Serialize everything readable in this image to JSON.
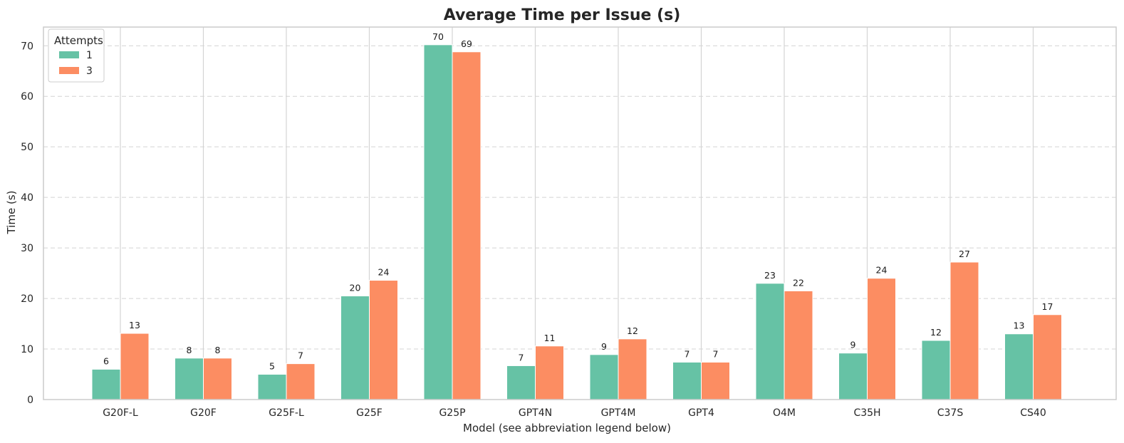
{
  "chart_data": {
    "type": "bar",
    "title": "Average Time per Issue (s)",
    "xlabel": "Model (see abbreviation legend below)",
    "ylabel": "Time (s)",
    "ylim": [
      0,
      73.7
    ],
    "yticks": [
      0,
      10,
      20,
      30,
      40,
      50,
      60,
      70
    ],
    "grid": "horizontal dashed + vertical at categories",
    "legend": {
      "title": "Attempts",
      "placement": "top-left"
    },
    "categories": [
      "G20F-L",
      "G20F",
      "G25F-L",
      "G25F",
      "G25P",
      "GPT4N",
      "GPT4M",
      "GPT4",
      "O4M",
      "C35H",
      "C37S",
      "CS40"
    ],
    "series": [
      {
        "name": "1",
        "color": "#66c2a5",
        "values": [
          6.0,
          8.2,
          5.0,
          20.5,
          70.2,
          6.7,
          8.9,
          7.4,
          23.0,
          9.2,
          11.7,
          13.0
        ],
        "labels": [
          "6",
          "8",
          "5",
          "20",
          "70",
          "7",
          "9",
          "7",
          "23",
          "9",
          "12",
          "13"
        ]
      },
      {
        "name": "3",
        "color": "#fc8d62",
        "values": [
          13.1,
          8.2,
          7.1,
          23.6,
          68.8,
          10.6,
          12.0,
          7.4,
          21.5,
          24.0,
          27.2,
          16.8
        ],
        "labels": [
          "13",
          "8",
          "7",
          "24",
          "69",
          "11",
          "12",
          "7",
          "22",
          "24",
          "27",
          "17"
        ]
      }
    ]
  }
}
